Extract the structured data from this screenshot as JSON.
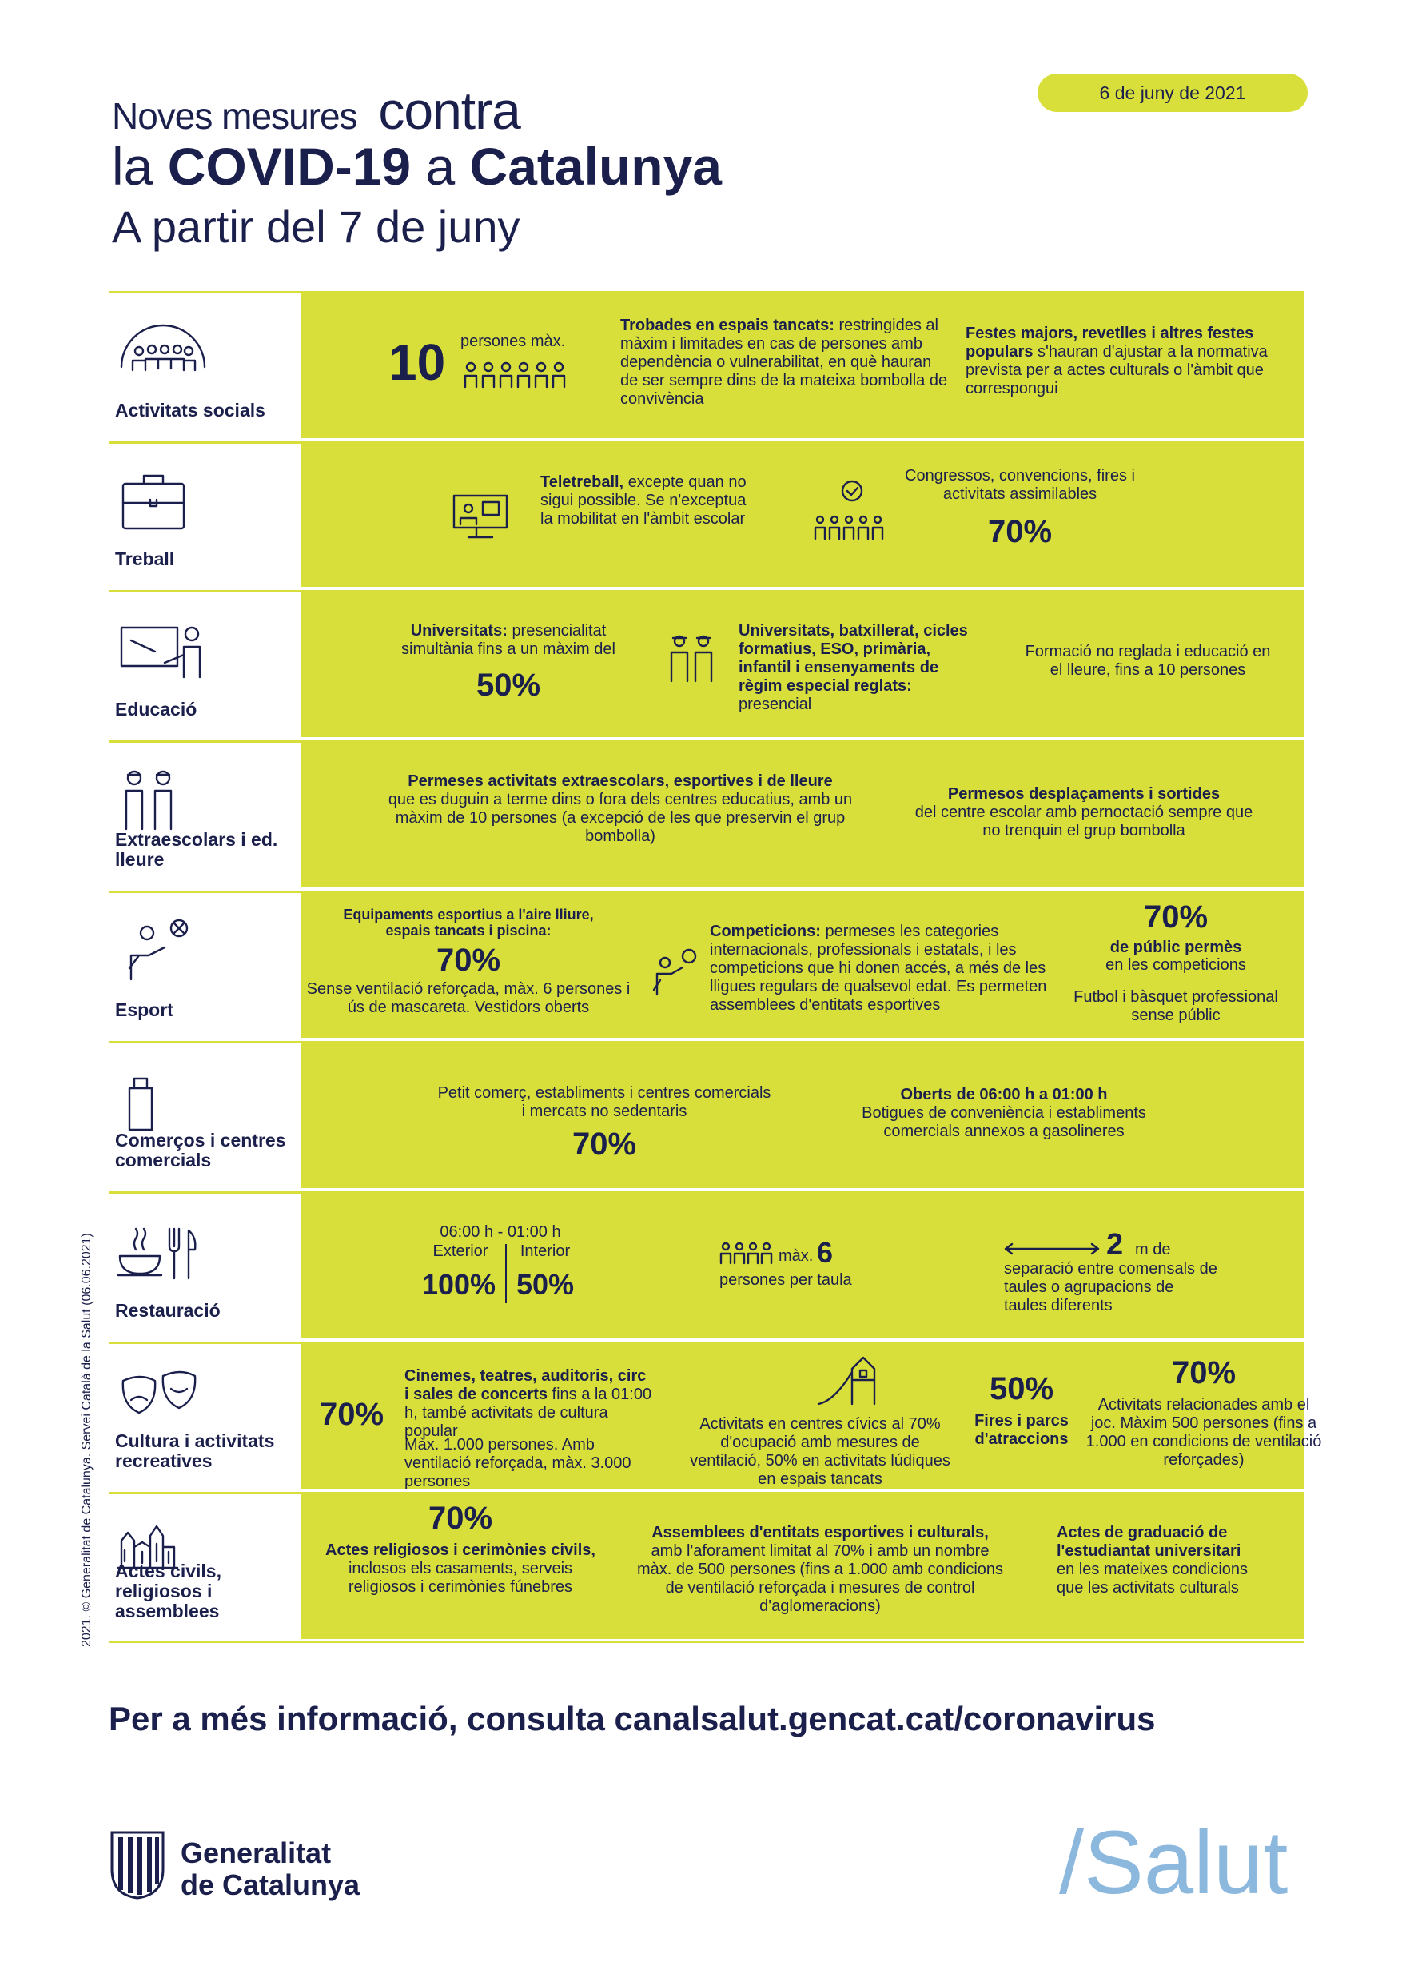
{
  "header": {
    "title_big": "Noves mesures",
    "title_small": "contra",
    "line2_a": "la",
    "line2_b": "COVID-19",
    "line2_c": "a",
    "line2_d": "Catalunya",
    "subtitle": "A partir del 7 de juny",
    "date": "6 de juny de 2021"
  },
  "rows": {
    "socials": {
      "label": "Activitats socials",
      "num": "10",
      "num_caption": "persones màx.",
      "c2_bold": "Trobades en espais tancats:",
      "c2_text": "restringides al màxim i limitades en cas de persones amb dependència o vulnerabilitat, en què hauran de ser sempre dins de la mateixa bombolla de convivència",
      "c3_bold": "Festes majors, revetlles i altres festes populars",
      "c3_text": "s'hauran d'ajustar a la normativa prevista per a actes culturals o l'àmbit que correspongui"
    },
    "treball": {
      "label": "Treball",
      "c1_bold": "Teletreball,",
      "c1_text": "excepte quan no sigui possible. Se n'exceptua la mobilitat en l'àmbit escolar",
      "c2_text": "Congressos, convencions, fires i activitats assimilables",
      "c2_pct": "70%"
    },
    "educacio": {
      "label": "Educació",
      "c1_bold": "Universitats:",
      "c1_text": "presencialitat simultània fins a un màxim del",
      "c1_pct": "50%",
      "c2_bold": "Universitats, batxillerat, cicles formatius, ESO, primària, infantil i ensenyaments de règim especial reglats:",
      "c2_text": "presencial",
      "c3_text": "Formació no reglada i educació en el lleure, fins a 10 persones"
    },
    "extra": {
      "label": "Extraescolars i ed. lleure",
      "c1_bold": "Permeses activitats extraescolars, esportives i de lleure",
      "c1_text": "que es duguin a terme dins o fora dels centres educatius, amb un màxim de 10 persones (a excepció de les que preservin el grup bombolla)",
      "c2_bold": "Permesos desplaçaments i sortides",
      "c2_text": "del centre escolar amb pernoctació sempre que no trenquin el grup bombolla"
    },
    "esport": {
      "label": "Esport",
      "c1_bold": "Equipaments esportius a l'aire lliure, espais tancats i piscina:",
      "c1_pct": "70%",
      "c1_text": "Sense ventilació reforçada, màx. 6 persones i ús de mascareta. Vestidors oberts",
      "c2_bold": "Competicions:",
      "c2_text": "permeses les categories internacionals, professionals i estatals, i les competicions que hi donen accés, a més de les lligues regulars de qualsevol edat. Es permeten assemblees d'entitats esportives",
      "c3_pct": "70%",
      "c3_bold": "de públic permès",
      "c3_text": "en les competicions",
      "c3_text2": "Futbol i bàsquet professional sense públic"
    },
    "comercos": {
      "label": "Comerços i centres comercials",
      "c1_text": "Petit comerç, establiments i centres comercials i mercats no sedentaris",
      "c1_pct": "70%",
      "c2_bold": "Oberts de 06:00 h a 01:00 h",
      "c2_text": "Botigues de conveniència i establiments comercials annexos a gasolineres"
    },
    "restauracio": {
      "label": "Restauració",
      "hours": "06:00 h - 01:00 h",
      "ext_label": "Exterior",
      "ext_pct": "100%",
      "int_label": "Interior",
      "int_pct": "50%",
      "max_pre": "màx.",
      "max_num": "6",
      "max_text": "persones per taula",
      "dist_num": "2",
      "dist_unit": "m de",
      "dist_text": "separació entre comensals de taules o agrupacions de taules diferents"
    },
    "cultura": {
      "label": "Cultura i activitats recreatives",
      "c1_pct": "70%",
      "c1_bold": "Cinemes, teatres, auditoris, circ i sales de concerts",
      "c1_text": "fins a la 01:00 h, també activitats de cultura popular",
      "c1_text2": "Màx. 1.000 persones. Amb ventilació reforçada, màx. 3.000 persones",
      "c2_text": "Activitats en centres cívics al 70% d'ocupació amb mesures de ventilació, 50% en activitats lúdiques en espais tancats",
      "c3_pct": "50%",
      "c3_bold": "Fires i parcs d'atraccions",
      "c4_pct": "70%",
      "c4_text": "Activitats relacionades amb el joc. Màxim 500 persones (fins a 1.000 en condicions de ventilació reforçades)"
    },
    "actes": {
      "label": "Actes civils, religiosos i assemblees",
      "c1_pct": "70%",
      "c1_bold": "Actes religiosos i cerimònies civils,",
      "c1_text": "inclosos els casaments, serveis religiosos i cerimònies fúnebres",
      "c2_bold": "Assemblees d'entitats esportives i culturals,",
      "c2_text": "amb l'aforament limitat al 70% i amb un nombre màx. de 500 persones (fins a 1.000 amb condicions de ventilació reforçada i mesures de control d'aglomeracions)",
      "c3_bold": "Actes de graduació de l'estudiantat universitari",
      "c3_text": "en les mateixes condicions que les activitats culturals"
    }
  },
  "footer": {
    "more_info": "Per a més informació, consulta canalsalut.gencat.cat/coronavirus",
    "vertical": "2021. © Generalitat de Catalunya. Servei Català de la Salut (06.06.2021)",
    "gen_line1": "Generalitat",
    "gen_line2": "de Catalunya",
    "salut": "/Salut"
  },
  "colors": {
    "accent": "#d9df3a",
    "text": "#1b1f4b",
    "salut": "#8cb8de"
  }
}
